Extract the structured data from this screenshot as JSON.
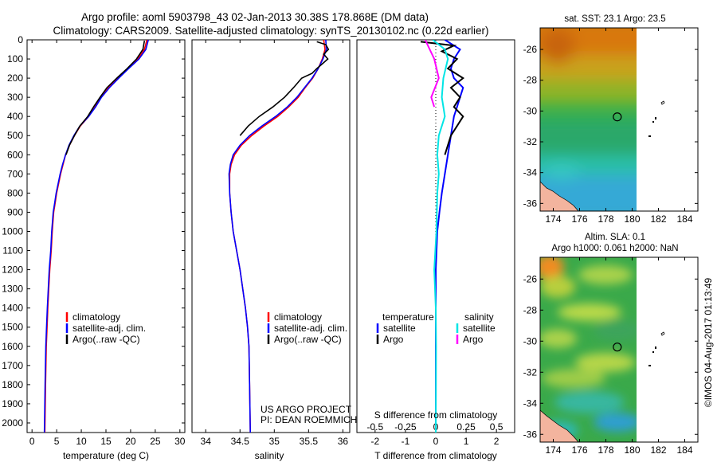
{
  "header": {
    "line1": "Argo profile: aoml 5903798_43 02-Jan-2013 30.38S 178.868E (DM data)",
    "line2": "Climatology: CARS2009. Satellite-adjusted climatology: synTS_20130102.nc (0.22d earlier)"
  },
  "colors": {
    "red": "#ff0000",
    "blue": "#0000ff",
    "black": "#000000",
    "cyan": "#00e5e5",
    "magenta": "#ff00ff"
  },
  "chart_data": [
    {
      "type": "line",
      "panel": "temperature",
      "xlabel": "temperature (deg C)",
      "xlim": [
        -1,
        31
      ],
      "xticks": [
        "0",
        "5",
        "10",
        "15",
        "20",
        "25",
        "30"
      ],
      "ylim": [
        0,
        2050
      ],
      "yticks": [
        "0",
        "100",
        "200",
        "300",
        "400",
        "500",
        "600",
        "700",
        "800",
        "900",
        "1000",
        "1100",
        "1200",
        "1300",
        "1400",
        "1500",
        "1600",
        "1700",
        "1800",
        "1900",
        "2000"
      ],
      "legend": [
        "climatology",
        "satellite-adj. clim.",
        "Argo(..raw -QC)"
      ],
      "series": [
        {
          "name": "climatology",
          "color": "red",
          "x": [
            23.3,
            22.8,
            21.5,
            19.5,
            17.5,
            15.5,
            14.0,
            12.8,
            11.5,
            9.8,
            8.6,
            7.6,
            6.8,
            6.3,
            5.8,
            5.4,
            5.0,
            4.7,
            4.4,
            4.1,
            3.9,
            3.6,
            3.4,
            3.2,
            3.05,
            2.9,
            2.75,
            2.6
          ],
          "y": [
            0,
            50,
            100,
            150,
            200,
            250,
            300,
            350,
            400,
            450,
            500,
            550,
            600,
            650,
            700,
            750,
            800,
            850,
            900,
            1000,
            1100,
            1200,
            1300,
            1400,
            1500,
            1600,
            1800,
            2050
          ]
        },
        {
          "name": "satellite-adj. clim.",
          "color": "blue",
          "x": [
            23.6,
            23.1,
            21.7,
            19.6,
            17.6,
            15.7,
            14.1,
            12.9,
            11.5,
            9.7,
            8.5,
            7.5,
            6.8,
            6.2,
            5.7,
            5.3,
            4.9,
            4.6,
            4.3,
            4.0,
            3.8,
            3.5,
            3.3,
            3.1,
            2.95,
            2.8,
            2.65,
            2.5
          ],
          "y": [
            0,
            50,
            100,
            150,
            200,
            250,
            300,
            350,
            400,
            450,
            500,
            550,
            600,
            650,
            700,
            750,
            800,
            850,
            900,
            1000,
            1100,
            1200,
            1300,
            1400,
            1500,
            1600,
            1800,
            2050
          ]
        },
        {
          "name": "Argo(..raw -QC)",
          "color": "black",
          "x": [
            22.8,
            22.5,
            21.2,
            19.3,
            17.2,
            15.2,
            13.8,
            12.5,
            11.3,
            9.7,
            8.6,
            7.6,
            6.9
          ],
          "y": [
            5,
            50,
            100,
            150,
            200,
            250,
            300,
            350,
            400,
            450,
            500,
            550,
            600
          ]
        }
      ]
    },
    {
      "type": "line",
      "panel": "salinity",
      "xlabel": "salinity",
      "xlim": [
        33.8,
        36.1
      ],
      "xticks": [
        "34",
        "34.5",
        "35",
        "35.5",
        "36"
      ],
      "ylim": [
        0,
        2050
      ],
      "legend": [
        "climatology",
        "satellite-adj. clim.",
        "Argo(..raw -QC)"
      ],
      "annotation": [
        "US ARGO PROJECT",
        "PI: DEAN ROEMMICH"
      ],
      "series": [
        {
          "name": "climatology",
          "color": "red",
          "x": [
            35.72,
            35.74,
            35.7,
            35.64,
            35.56,
            35.45,
            35.35,
            35.21,
            35.05,
            34.85,
            34.67,
            34.52,
            34.42,
            34.37,
            34.35,
            34.35,
            34.37,
            34.4,
            34.45,
            34.5,
            34.54,
            34.58,
            34.61,
            34.63,
            34.64,
            34.65
          ],
          "y": [
            0,
            50,
            100,
            150,
            200,
            250,
            300,
            350,
            400,
            450,
            500,
            550,
            600,
            650,
            700,
            800,
            900,
            1000,
            1100,
            1200,
            1300,
            1400,
            1500,
            1600,
            1800,
            2050
          ]
        },
        {
          "name": "satellite-adj. clim.",
          "color": "blue",
          "x": [
            35.75,
            35.76,
            35.71,
            35.64,
            35.55,
            35.44,
            35.33,
            35.19,
            35.02,
            34.82,
            34.64,
            34.5,
            34.4,
            34.36,
            34.34,
            34.35,
            34.37,
            34.4,
            34.45,
            34.5,
            34.54,
            34.58,
            34.61,
            34.63,
            34.64,
            34.65
          ],
          "y": [
            0,
            50,
            100,
            150,
            200,
            250,
            300,
            350,
            400,
            450,
            500,
            550,
            600,
            650,
            700,
            800,
            900,
            1000,
            1100,
            1200,
            1300,
            1400,
            1500,
            1600,
            1800,
            2050
          ]
        },
        {
          "name": "Argo(..raw -QC)",
          "color": "black",
          "x": [
            35.62,
            35.75,
            35.79,
            35.72,
            35.78,
            35.7,
            35.62,
            35.55,
            35.4,
            35.28,
            35.15,
            34.98,
            34.78,
            34.62,
            34.5
          ],
          "y": [
            10,
            25,
            50,
            75,
            100,
            125,
            150,
            175,
            200,
            250,
            300,
            350,
            400,
            450,
            500
          ]
        }
      ]
    },
    {
      "type": "line",
      "panel": "difference",
      "xlabel_top": "S difference from climatology",
      "xticks_top": [
        "-0.5",
        "-0.25",
        "0",
        "0.25",
        "0.5"
      ],
      "xlabel": "T difference from climatology",
      "xticks": [
        "-2",
        "-1",
        "0",
        "1",
        "2"
      ],
      "xlim": [
        -2.6,
        2.6
      ],
      "ylim": [
        0,
        2050
      ],
      "legend_temperature_title": "temperature",
      "legend_salinity_title": "salinity",
      "legend": [
        "satellite",
        "Argo",
        "satellite",
        "Argo"
      ],
      "series": [
        {
          "name": "temperature satellite",
          "color": "blue",
          "x": [
            0.3,
            0.8,
            0.6,
            0.5,
            0.6,
            0.9,
            0.8,
            0.7,
            0.6,
            0.5,
            0.4,
            0.3,
            0.2,
            0.12,
            0.05,
            0,
            0
          ],
          "y": [
            0,
            50,
            100,
            150,
            200,
            250,
            300,
            350,
            400,
            500,
            600,
            700,
            800,
            900,
            1000,
            1200,
            2050
          ]
        },
        {
          "name": "temperature Argo",
          "color": "black",
          "x": [
            -0.5,
            0.6,
            0.2,
            0.7,
            0.4,
            0.9,
            0.5,
            0.8,
            0.6,
            0.9,
            0.7,
            0.5,
            0.3
          ],
          "y": [
            10,
            30,
            60,
            100,
            150,
            200,
            250,
            300,
            350,
            400,
            450,
            500,
            600
          ]
        },
        {
          "name": "salinity satellite",
          "color": "cyan",
          "x": [
            -0.1,
            0.3,
            0.4,
            0.25,
            0.2,
            0.3,
            0.1,
            0.05,
            0.1,
            0.05,
            0.02,
            -0.05,
            0,
            0.01,
            0
          ],
          "y": [
            0,
            50,
            100,
            200,
            300,
            400,
            500,
            600,
            700,
            800,
            1000,
            1200,
            1400,
            1600,
            2050
          ]
        },
        {
          "name": "salinity Argo",
          "color": "magenta",
          "x": [
            -0.35,
            -0.2,
            -0.05,
            0.1,
            -0.15,
            -0.05
          ],
          "y": [
            0,
            50,
            100,
            200,
            300,
            350
          ]
        }
      ]
    },
    {
      "type": "heatmap",
      "panel": "sst-map",
      "title": "sat. SST: 23.1 Argo: 23.5",
      "xlim": [
        173,
        185
      ],
      "xticks": [
        "174",
        "176",
        "178",
        "180",
        "182",
        "184"
      ],
      "ylim": [
        -36.5,
        -24.6
      ],
      "yticks": [
        "-26",
        "-28",
        "-30",
        "-32",
        "-34",
        "-36"
      ],
      "argo_position": [
        178.868,
        -30.38
      ]
    },
    {
      "type": "heatmap",
      "panel": "sla-map",
      "title_line1": "Altim. SLA: 0.1",
      "title_line2": "Argo h1000: 0.061 h2000: NaN",
      "xlim": [
        173,
        185
      ],
      "xticks": [
        "174",
        "176",
        "178",
        "180",
        "182",
        "184"
      ],
      "ylim": [
        -36.5,
        -24.6
      ],
      "yticks": [
        "-26",
        "-28",
        "-30",
        "-32",
        "-34",
        "-36"
      ],
      "argo_position": [
        178.868,
        -30.38
      ]
    }
  ],
  "footer": {
    "stamp": "©IMOS 04-Aug-2017 01:13:49"
  }
}
